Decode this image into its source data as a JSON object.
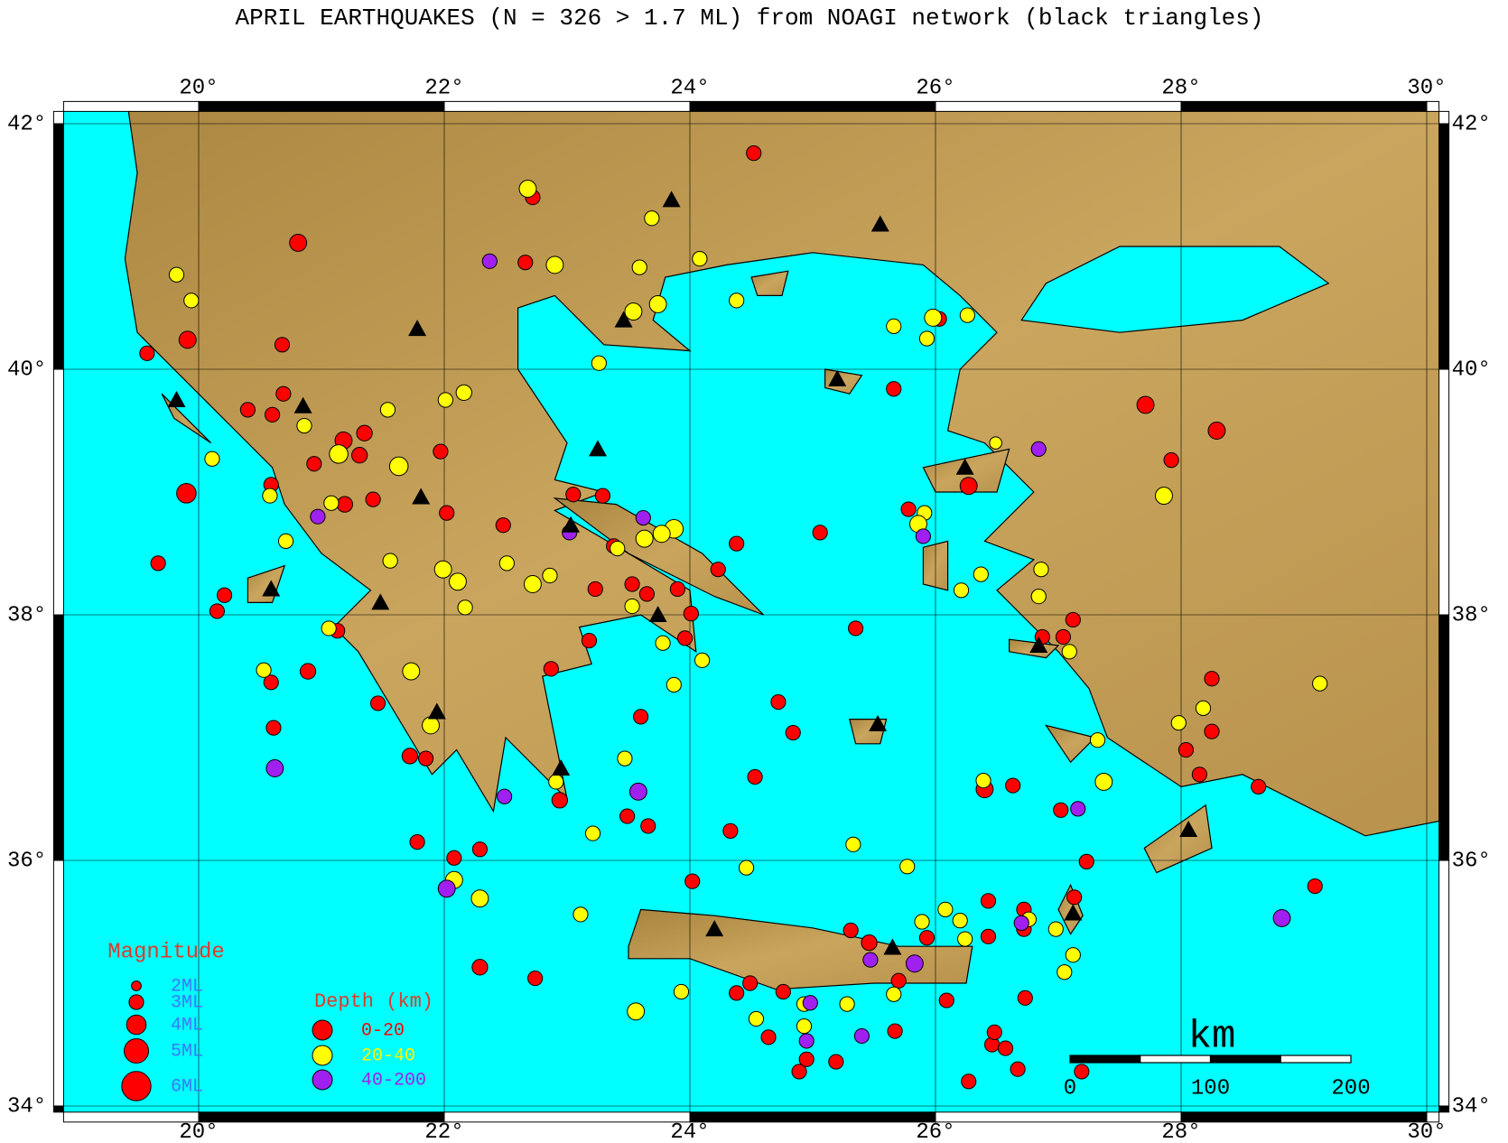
{
  "title": "APRIL EARTHQUAKES (N = 326 > 1.7 ML) from NOAGI network (black triangles)",
  "lon_lim": [
    18.9,
    30.1
  ],
  "lat_lim": [
    33.95,
    42.1
  ],
  "lon_ticks": [
    {
      "value": 20,
      "label": "20°"
    },
    {
      "value": 22,
      "label": "22°"
    },
    {
      "value": 24,
      "label": "24°"
    },
    {
      "value": 26,
      "label": "26°"
    },
    {
      "value": 28,
      "label": "28°"
    },
    {
      "value": 30,
      "label": "30°"
    }
  ],
  "lat_ticks": [
    {
      "value": 34,
      "label": "34°"
    },
    {
      "value": 36,
      "label": "36°"
    },
    {
      "value": 38,
      "label": "38°"
    },
    {
      "value": 40,
      "label": "40°"
    },
    {
      "value": 42,
      "label": "42°"
    }
  ],
  "legend": {
    "magnitude_title": "Magnitude",
    "magnitudes": [
      {
        "value": 2,
        "label": "2ML"
      },
      {
        "value": 3,
        "label": "3ML"
      },
      {
        "value": 4,
        "label": "4ML"
      },
      {
        "value": 5,
        "label": "5ML"
      },
      {
        "value": 6,
        "label": "6ML"
      }
    ],
    "depth_title": "Depth (km)",
    "depths": [
      {
        "label": "0-20",
        "color": "#ff0000"
      },
      {
        "label": "20-40",
        "color": "#ffff00"
      },
      {
        "label": "40-200",
        "color": "#a020f0"
      }
    ]
  },
  "scale_bar": {
    "unit": "km",
    "ticks": [
      {
        "value": 0,
        "label": "0"
      },
      {
        "value": 100,
        "label": "100"
      },
      {
        "value": 200,
        "label": "200"
      }
    ]
  },
  "stations": [
    [
      23.85,
      41.38
    ],
    [
      25.55,
      41.18
    ],
    [
      21.78,
      40.33
    ],
    [
      23.46,
      40.4
    ],
    [
      25.2,
      39.92
    ],
    [
      19.82,
      39.75
    ],
    [
      20.85,
      39.7
    ],
    [
      23.25,
      39.35
    ],
    [
      21.81,
      38.96
    ],
    [
      26.24,
      39.2
    ],
    [
      23.03,
      38.73
    ],
    [
      20.59,
      38.21
    ],
    [
      21.48,
      38.1
    ],
    [
      23.74,
      38.0
    ],
    [
      26.84,
      37.75
    ],
    [
      21.94,
      37.21
    ],
    [
      22.95,
      36.75
    ],
    [
      25.53,
      37.11
    ],
    [
      28.06,
      36.25
    ],
    [
      24.2,
      35.44
    ],
    [
      25.65,
      35.29
    ],
    [
      27.12,
      35.57
    ]
  ],
  "earthquakes": [
    [
      24.52,
      41.76,
      3,
      0
    ],
    [
      22.72,
      41.4,
      3,
      0
    ],
    [
      20.81,
      41.03,
      3.5,
      0
    ],
    [
      22.66,
      40.87,
      3,
      0
    ],
    [
      19.58,
      40.13,
      3,
      0
    ],
    [
      19.91,
      40.24,
      3.5,
      0
    ],
    [
      20.68,
      40.2,
      3,
      0
    ],
    [
      20.69,
      39.8,
      3,
      0
    ],
    [
      20.4,
      39.67,
      3,
      0
    ],
    [
      20.6,
      39.63,
      3,
      0
    ],
    [
      21.35,
      39.48,
      3.2,
      0
    ],
    [
      21.31,
      39.3,
      3.2,
      0
    ],
    [
      21.18,
      39.42,
      3.5,
      0
    ],
    [
      20.94,
      39.23,
      3,
      0
    ],
    [
      19.9,
      38.99,
      4,
      0
    ],
    [
      21.97,
      39.33,
      3,
      0
    ],
    [
      22.02,
      38.83,
      3,
      0
    ],
    [
      21.19,
      38.9,
      3.2,
      0
    ],
    [
      21.42,
      38.94,
      3,
      0
    ],
    [
      20.59,
      39.06,
      3,
      0
    ],
    [
      19.67,
      38.42,
      3,
      0
    ],
    [
      20.21,
      38.16,
      3,
      0
    ],
    [
      20.15,
      38.03,
      3,
      0
    ],
    [
      21.13,
      37.87,
      3,
      0
    ],
    [
      20.89,
      37.54,
      3.2,
      0
    ],
    [
      21.46,
      37.28,
      3,
      0
    ],
    [
      20.59,
      37.45,
      3,
      0
    ],
    [
      20.61,
      37.08,
      3,
      0
    ],
    [
      21.72,
      36.85,
      3.2,
      0
    ],
    [
      21.85,
      36.83,
      3,
      0
    ],
    [
      21.78,
      36.15,
      3,
      0
    ],
    [
      22.08,
      36.02,
      3,
      0
    ],
    [
      22.29,
      36.09,
      3,
      0
    ],
    [
      22.29,
      35.13,
      3.2,
      0
    ],
    [
      22.74,
      35.04,
      3,
      0
    ],
    [
      22.48,
      38.73,
      3,
      0
    ],
    [
      23.05,
      38.98,
      3,
      0
    ],
    [
      23.29,
      38.97,
      3,
      0
    ],
    [
      23.38,
      38.56,
      3,
      0
    ],
    [
      23.23,
      38.21,
      3,
      0
    ],
    [
      23.53,
      38.25,
      3,
      0
    ],
    [
      23.65,
      38.17,
      3,
      0
    ],
    [
      23.9,
      38.21,
      3,
      0
    ],
    [
      24.01,
      38.01,
      3,
      0
    ],
    [
      23.96,
      37.81,
      3,
      0
    ],
    [
      24.23,
      38.37,
      3,
      0
    ],
    [
      23.18,
      37.79,
      3,
      0
    ],
    [
      22.87,
      37.56,
      3,
      0
    ],
    [
      23.6,
      37.17,
      3,
      0
    ],
    [
      22.94,
      36.49,
      3.2,
      0
    ],
    [
      23.49,
      36.36,
      3,
      0
    ],
    [
      23.66,
      36.28,
      3,
      0
    ],
    [
      24.33,
      36.24,
      3,
      0
    ],
    [
      24.38,
      38.58,
      3,
      0
    ],
    [
      24.53,
      36.68,
      3,
      0
    ],
    [
      24.72,
      37.29,
      3,
      0
    ],
    [
      24.84,
      37.04,
      3,
      0
    ],
    [
      24.02,
      35.83,
      3,
      0
    ],
    [
      25.06,
      38.67,
      3,
      0
    ],
    [
      25.35,
      37.89,
      3,
      0
    ],
    [
      25.66,
      39.84,
      3,
      0
    ],
    [
      26.03,
      40.41,
      3,
      0
    ],
    [
      27.71,
      39.71,
      3.5,
      0
    ],
    [
      28.29,
      39.5,
      3.5,
      0
    ],
    [
      27.92,
      39.26,
      3,
      0
    ],
    [
      26.27,
      39.05,
      3.5,
      0
    ],
    [
      25.78,
      38.86,
      3,
      0
    ],
    [
      27.12,
      37.96,
      3,
      0
    ],
    [
      26.87,
      37.82,
      3,
      0
    ],
    [
      27.04,
      37.82,
      3,
      0
    ],
    [
      28.25,
      37.48,
      3,
      0
    ],
    [
      28.25,
      37.05,
      3,
      0
    ],
    [
      28.04,
      36.9,
      3,
      0
    ],
    [
      28.15,
      36.7,
      3,
      0
    ],
    [
      28.63,
      36.6,
      3,
      0
    ],
    [
      29.09,
      35.79,
      3,
      0
    ],
    [
      26.4,
      36.58,
      3.5,
      0
    ],
    [
      26.63,
      36.61,
      3,
      0
    ],
    [
      27.02,
      36.41,
      3,
      0
    ],
    [
      27.23,
      35.99,
      3,
      0
    ],
    [
      27.13,
      35.7,
      3,
      0
    ],
    [
      26.72,
      35.6,
      3,
      0
    ],
    [
      26.43,
      35.67,
      3,
      0
    ],
    [
      26.72,
      35.44,
      3,
      0
    ],
    [
      26.73,
      34.88,
      3,
      0
    ],
    [
      26.43,
      35.38,
      3,
      0
    ],
    [
      26.09,
      34.86,
      3,
      0
    ],
    [
      25.93,
      35.37,
      3,
      0
    ],
    [
      25.46,
      35.33,
      3.2,
      0
    ],
    [
      25.31,
      35.43,
      3,
      0
    ],
    [
      25.7,
      35.02,
      3,
      0
    ],
    [
      25.67,
      34.61,
      3,
      0
    ],
    [
      25.19,
      34.36,
      3,
      0
    ],
    [
      24.95,
      34.38,
      3,
      0
    ],
    [
      24.89,
      34.28,
      3,
      0
    ],
    [
      24.64,
      34.56,
      3,
      0
    ],
    [
      24.76,
      34.93,
      3,
      0
    ],
    [
      24.49,
      35.0,
      3,
      0
    ],
    [
      24.38,
      34.92,
      3,
      0
    ],
    [
      26.46,
      34.5,
      3,
      0
    ],
    [
      26.57,
      34.47,
      3,
      0
    ],
    [
      26.67,
      34.3,
      3,
      0
    ],
    [
      26.27,
      34.2,
      3,
      0
    ],
    [
      27.19,
      34.28,
      3,
      0
    ],
    [
      26.48,
      34.6,
      3,
      0
    ],
    [
      22.68,
      41.47,
      3.5,
      1
    ],
    [
      22.9,
      40.85,
      3.5,
      1
    ],
    [
      23.59,
      40.83,
      3,
      1
    ],
    [
      24.08,
      40.9,
      3,
      1
    ],
    [
      23.69,
      41.23,
      3,
      1
    ],
    [
      19.82,
      40.77,
      3,
      1
    ],
    [
      19.94,
      40.56,
      3,
      1
    ],
    [
      23.54,
      40.47,
      3.5,
      1
    ],
    [
      23.74,
      40.53,
      3.5,
      1
    ],
    [
      24.38,
      40.56,
      3,
      1
    ],
    [
      23.26,
      40.05,
      3,
      1
    ],
    [
      22.01,
      39.75,
      3,
      1
    ],
    [
      22.16,
      39.81,
      3.2,
      1
    ],
    [
      21.54,
      39.67,
      3,
      1
    ],
    [
      20.86,
      39.54,
      3,
      1
    ],
    [
      21.14,
      39.31,
      3.8,
      1
    ],
    [
      21.63,
      39.21,
      3.8,
      1
    ],
    [
      20.11,
      39.27,
      3,
      1
    ],
    [
      20.58,
      38.97,
      3,
      1
    ],
    [
      20.71,
      38.6,
      3,
      1
    ],
    [
      21.08,
      38.91,
      3,
      1
    ],
    [
      21.56,
      38.44,
      3,
      1
    ],
    [
      21.99,
      38.37,
      3.5,
      1
    ],
    [
      22.11,
      38.27,
      3.5,
      1
    ],
    [
      22.17,
      38.06,
      3,
      1
    ],
    [
      21.06,
      37.89,
      3,
      1
    ],
    [
      21.73,
      37.54,
      3.5,
      1
    ],
    [
      21.89,
      37.1,
      3.5,
      1
    ],
    [
      20.53,
      37.55,
      3,
      1
    ],
    [
      22.51,
      38.42,
      3,
      1
    ],
    [
      22.72,
      38.25,
      3.5,
      1
    ],
    [
      22.86,
      38.32,
      3,
      1
    ],
    [
      23.41,
      38.54,
      3,
      1
    ],
    [
      23.63,
      38.62,
      3.5,
      1
    ],
    [
      23.87,
      38.7,
      3.8,
      1
    ],
    [
      23.77,
      38.66,
      3.5,
      1
    ],
    [
      23.53,
      38.07,
      3,
      1
    ],
    [
      23.78,
      37.77,
      3,
      1
    ],
    [
      23.87,
      37.43,
      3,
      1
    ],
    [
      24.1,
      37.63,
      3,
      1
    ],
    [
      23.47,
      36.83,
      3,
      1
    ],
    [
      22.91,
      36.64,
      3,
      1
    ],
    [
      23.21,
      36.22,
      3,
      1
    ],
    [
      22.08,
      35.84,
      3.5,
      1
    ],
    [
      22.29,
      35.69,
      3.5,
      1
    ],
    [
      23.11,
      35.56,
      3,
      1
    ],
    [
      23.56,
      34.77,
      3.5,
      1
    ],
    [
      23.93,
      34.93,
      3,
      1
    ],
    [
      24.54,
      34.71,
      3,
      1
    ],
    [
      24.46,
      35.94,
      3,
      1
    ],
    [
      25.33,
      36.13,
      3,
      1
    ],
    [
      25.77,
      35.95,
      3,
      1
    ],
    [
      25.89,
      35.5,
      3,
      1
    ],
    [
      26.08,
      35.6,
      3,
      1
    ],
    [
      26.2,
      35.51,
      3,
      1
    ],
    [
      26.24,
      35.36,
      3,
      1
    ],
    [
      25.66,
      34.91,
      3,
      1
    ],
    [
      25.28,
      34.83,
      3,
      1
    ],
    [
      24.93,
      34.65,
      3,
      1
    ],
    [
      24.93,
      34.83,
      3,
      1
    ],
    [
      26.26,
      40.44,
      3,
      1
    ],
    [
      25.98,
      40.42,
      3.5,
      1
    ],
    [
      25.66,
      40.35,
      3,
      1
    ],
    [
      25.93,
      40.25,
      3,
      1
    ],
    [
      26.49,
      39.4,
      2.5,
      1
    ],
    [
      27.86,
      38.97,
      3.5,
      1
    ],
    [
      25.91,
      38.83,
      3,
      1
    ],
    [
      25.86,
      38.74,
      3.5,
      1
    ],
    [
      26.37,
      38.33,
      3,
      1
    ],
    [
      26.21,
      38.2,
      3,
      1
    ],
    [
      26.86,
      38.37,
      3,
      1
    ],
    [
      26.84,
      38.15,
      3,
      1
    ],
    [
      27.09,
      37.7,
      3,
      1
    ],
    [
      28.18,
      37.24,
      3,
      1
    ],
    [
      27.98,
      37.12,
      3,
      1
    ],
    [
      29.13,
      37.44,
      3,
      1
    ],
    [
      27.32,
      36.98,
      3,
      1
    ],
    [
      27.37,
      36.64,
      3.5,
      1
    ],
    [
      26.39,
      36.65,
      3,
      1
    ],
    [
      26.76,
      35.52,
      3,
      1
    ],
    [
      26.98,
      35.44,
      3,
      1
    ],
    [
      27.12,
      35.23,
      3,
      1
    ],
    [
      27.05,
      35.09,
      3,
      1
    ],
    [
      22.37,
      40.88,
      3,
      2
    ],
    [
      20.97,
      38.8,
      3,
      2
    ],
    [
      23.02,
      38.67,
      3,
      2
    ],
    [
      23.62,
      38.79,
      3,
      2
    ],
    [
      20.62,
      36.75,
      3.5,
      2
    ],
    [
      22.49,
      36.52,
      3,
      2
    ],
    [
      23.58,
      36.56,
      3.5,
      2
    ],
    [
      22.02,
      35.77,
      3.5,
      2
    ],
    [
      26.84,
      39.35,
      3,
      2
    ],
    [
      25.9,
      38.64,
      3,
      2
    ],
    [
      27.16,
      36.42,
      3,
      2
    ],
    [
      28.82,
      35.53,
      3.5,
      2
    ],
    [
      25.47,
      35.19,
      3,
      2
    ],
    [
      25.83,
      35.16,
      3.5,
      2
    ],
    [
      24.98,
      34.84,
      3,
      2
    ],
    [
      24.95,
      34.53,
      3,
      2
    ],
    [
      25.4,
      34.57,
      3,
      2
    ],
    [
      26.7,
      35.49,
      3,
      2
    ]
  ]
}
